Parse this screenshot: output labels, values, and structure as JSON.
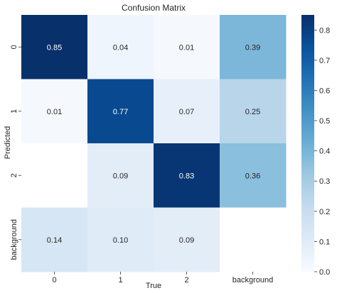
{
  "chart_data": {
    "type": "heatmap",
    "title": "Confusion Matrix",
    "xlabel": "True",
    "ylabel": "Predicted",
    "x_categories": [
      "0",
      "1",
      "2",
      "background"
    ],
    "y_categories": [
      "0",
      "1",
      "2",
      "background"
    ],
    "values": [
      [
        0.85,
        0.04,
        0.01,
        0.39
      ],
      [
        0.01,
        0.77,
        0.07,
        0.25
      ],
      [
        null,
        0.09,
        0.83,
        0.36
      ],
      [
        0.14,
        0.1,
        0.09,
        null
      ]
    ],
    "cell_labels": [
      [
        "0.85",
        "0.04",
        "0.01",
        "0.39"
      ],
      [
        "0.01",
        "0.77",
        "0.07",
        "0.25"
      ],
      [
        "",
        "0.09",
        "0.83",
        "0.36"
      ],
      [
        "0.14",
        "0.10",
        "0.09",
        ""
      ]
    ],
    "colormap": "Blues",
    "colorbar": {
      "range": [
        0,
        0.85
      ],
      "ticks": [
        0.0,
        0.1,
        0.2,
        0.3,
        0.4,
        0.5,
        0.6,
        0.7,
        0.8
      ],
      "tick_labels": [
        "0.0",
        "0.1",
        "0.2",
        "0.3",
        "0.4",
        "0.5",
        "0.6",
        "0.7",
        "0.8"
      ],
      "placement": "right"
    },
    "colors": {
      "min": "#f7fbff",
      "max": "#08306b",
      "empty_cell": "#ffffff"
    }
  }
}
